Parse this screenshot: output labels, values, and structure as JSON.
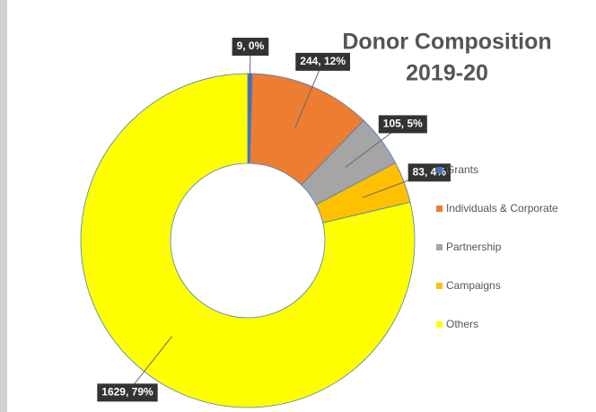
{
  "chart_data": {
    "type": "donut",
    "title_lines": [
      "Donor Composition",
      "2019-20"
    ],
    "categories": [
      "Grants",
      "Individuals & Corporate",
      "Partnership",
      "Campaigns",
      "Others"
    ],
    "values": [
      9,
      244,
      105,
      83,
      1629
    ],
    "value_labels": [
      "9, 0%",
      "244, 12%",
      "105, 5%",
      "83, 4%",
      "1629, 79%"
    ],
    "colors": [
      "#4472c4",
      "#ed7d31",
      "#a5a5a5",
      "#ffc000",
      "#ffff00"
    ],
    "legend": "right"
  }
}
